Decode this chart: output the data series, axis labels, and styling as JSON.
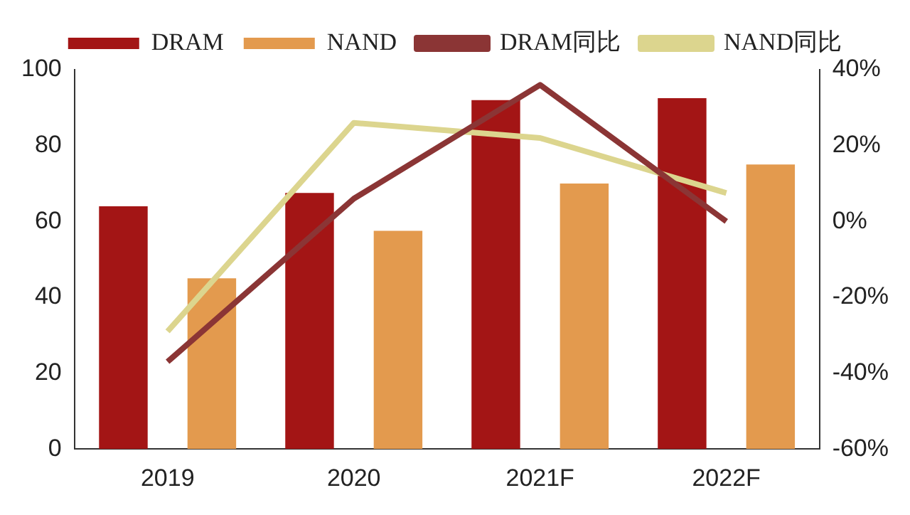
{
  "chart_data": {
    "type": "bar",
    "categories": [
      "2019",
      "2020",
      "2021F",
      "2022F"
    ],
    "series": [
      {
        "name": "DRAM",
        "color": "#a31515",
        "values": [
          64,
          67.5,
          92,
          92.5
        ]
      },
      {
        "name": "NAND",
        "color": "#e39a4e",
        "values": [
          45,
          57.5,
          70,
          75
        ]
      },
      {
        "name": "DRAM同比",
        "type": "line",
        "axis": "y2",
        "color": "#8b3535",
        "values": [
          -37,
          6,
          36,
          0
        ]
      },
      {
        "name": "NAND同比",
        "type": "line",
        "axis": "y2",
        "color": "#dcd58e",
        "values": [
          -29,
          26,
          22,
          7.5
        ]
      }
    ],
    "ylim": [
      0,
      100
    ],
    "yticks": [
      0,
      20,
      40,
      60,
      80,
      100
    ],
    "y2lim": [
      -60,
      40
    ],
    "y2ticks": [
      {
        "value": -60,
        "label": "-60%"
      },
      {
        "value": -40,
        "label": "-40%"
      },
      {
        "value": -20,
        "label": "-20%"
      },
      {
        "value": 0,
        "label": "0%"
      },
      {
        "value": 20,
        "label": "20%"
      },
      {
        "value": 40,
        "label": "40%"
      }
    ],
    "legend": "top",
    "grid": false
  }
}
